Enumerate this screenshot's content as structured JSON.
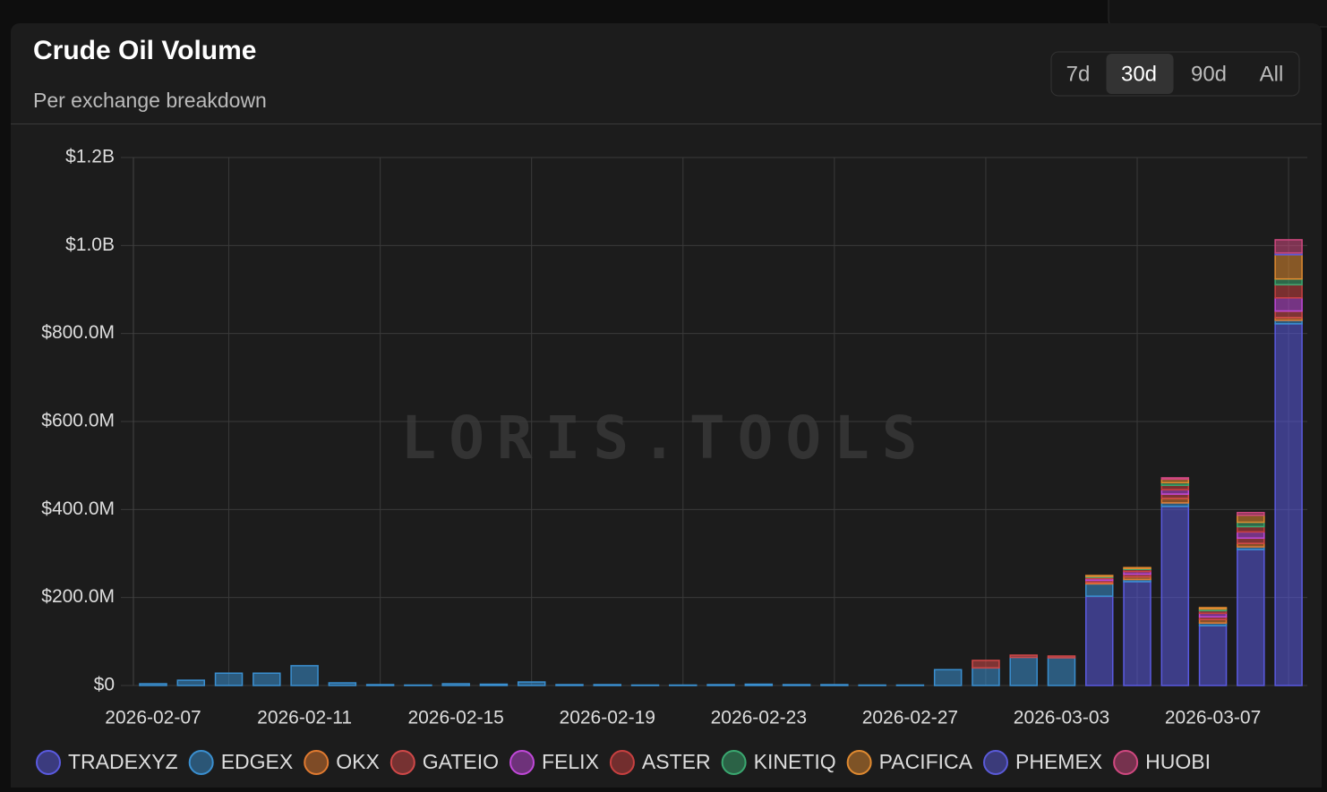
{
  "header": {
    "title": "Crude Oil Volume",
    "subtitle": "Per exchange breakdown",
    "ranges": [
      "7d",
      "30d",
      "90d",
      "All"
    ],
    "active_range": "30d"
  },
  "watermark": "LORIS.TOOLS",
  "chart_data": {
    "type": "stacked_bar",
    "categories": [
      "2026-02-07",
      null,
      null,
      null,
      "2026-02-11",
      null,
      null,
      null,
      "2026-02-15",
      null,
      null,
      null,
      "2026-02-19",
      null,
      null,
      null,
      "2026-02-23",
      null,
      null,
      null,
      "2026-02-27",
      null,
      null,
      null,
      "2026-03-03",
      null,
      null,
      null,
      "2026-03-07",
      null,
      null
    ],
    "ylim": [
      0,
      1200000000
    ],
    "yticks": [
      {
        "value": 0,
        "label": "$0"
      },
      {
        "value": 200000000,
        "label": "$200.0M"
      },
      {
        "value": 400000000,
        "label": "$400.0M"
      },
      {
        "value": 600000000,
        "label": "$600.0M"
      },
      {
        "value": 800000000,
        "label": "$800.0M"
      },
      {
        "value": 1000000000,
        "label": "$1.0B"
      },
      {
        "value": 1200000000,
        "label": "$1.2B"
      }
    ],
    "grid": true,
    "series": [
      {
        "name": "TRADEXYZ",
        "color": "#5a5ae0",
        "values": [
          0,
          0,
          0,
          0,
          0,
          0,
          0,
          0,
          0,
          0,
          0,
          0,
          0,
          0,
          0,
          0,
          0,
          0,
          0,
          0,
          0,
          0,
          0,
          0,
          0,
          203000000,
          236000000,
          407000000,
          136000000,
          309000000,
          822000000
        ]
      },
      {
        "name": "EDGEX",
        "color": "#3a8fd0",
        "values": [
          4000000,
          12000000,
          28000000,
          28000000,
          45000000,
          6000000,
          2000000,
          1000000,
          4000000,
          3000000,
          8000000,
          2000000,
          2000000,
          1000000,
          1000000,
          2000000,
          3000000,
          2000000,
          2000000,
          1000000,
          1000000,
          36000000,
          40000000,
          64000000,
          63000000,
          28000000,
          5000000,
          8000000,
          6000000,
          6000000,
          8000000
        ]
      },
      {
        "name": "OKX",
        "color": "#e07a30",
        "values": [
          0,
          0,
          0,
          0,
          0,
          0,
          0,
          0,
          0,
          0,
          0,
          0,
          0,
          0,
          0,
          0,
          0,
          0,
          0,
          0,
          0,
          0,
          0,
          0,
          0,
          3000000,
          6000000,
          10000000,
          8000000,
          8000000,
          6000000
        ]
      },
      {
        "name": "GATEIO",
        "color": "#d04848",
        "values": [
          0,
          0,
          0,
          0,
          0,
          0,
          0,
          0,
          0,
          0,
          0,
          0,
          0,
          0,
          0,
          0,
          0,
          0,
          0,
          0,
          0,
          0,
          17000000,
          5000000,
          4000000,
          5000000,
          6000000,
          10000000,
          6000000,
          12000000,
          15000000
        ]
      },
      {
        "name": "FELIX",
        "color": "#c048d8",
        "values": [
          0,
          0,
          0,
          0,
          0,
          0,
          0,
          0,
          0,
          0,
          0,
          0,
          0,
          0,
          0,
          0,
          0,
          0,
          0,
          0,
          0,
          0,
          0,
          0,
          0,
          4000000,
          6000000,
          10000000,
          8000000,
          14000000,
          30000000
        ]
      },
      {
        "name": "ASTER",
        "color": "#c84040",
        "values": [
          0,
          0,
          0,
          0,
          0,
          0,
          0,
          0,
          0,
          0,
          0,
          0,
          0,
          0,
          0,
          0,
          0,
          0,
          0,
          0,
          0,
          0,
          0,
          0,
          0,
          3000000,
          5000000,
          10000000,
          6000000,
          12000000,
          30000000
        ]
      },
      {
        "name": "KINETIQ",
        "color": "#3aa870",
        "values": [
          0,
          0,
          0,
          0,
          0,
          0,
          0,
          0,
          0,
          0,
          0,
          0,
          0,
          0,
          0,
          0,
          0,
          0,
          0,
          0,
          0,
          0,
          0,
          0,
          0,
          2000000,
          2000000,
          6000000,
          4000000,
          10000000,
          13000000
        ]
      },
      {
        "name": "PACIFICA",
        "color": "#e08a30",
        "values": [
          0,
          0,
          0,
          0,
          0,
          0,
          0,
          0,
          0,
          0,
          0,
          0,
          0,
          0,
          0,
          0,
          0,
          0,
          0,
          0,
          0,
          0,
          0,
          0,
          0,
          2000000,
          2000000,
          8000000,
          3000000,
          16000000,
          55000000
        ]
      },
      {
        "name": "PHEMEX",
        "color": "#5a5ad8",
        "values": [
          0,
          0,
          0,
          0,
          0,
          0,
          0,
          0,
          0,
          0,
          0,
          0,
          0,
          0,
          0,
          0,
          0,
          0,
          0,
          0,
          0,
          0,
          0,
          0,
          0,
          0,
          0,
          0,
          0,
          0,
          4000000
        ]
      },
      {
        "name": "HUOBI",
        "color": "#d04880",
        "values": [
          0,
          0,
          0,
          0,
          0,
          0,
          0,
          0,
          0,
          0,
          0,
          0,
          0,
          0,
          0,
          0,
          0,
          0,
          0,
          0,
          0,
          0,
          0,
          0,
          0,
          0,
          0,
          3000000,
          0,
          6000000,
          30000000
        ]
      }
    ]
  }
}
